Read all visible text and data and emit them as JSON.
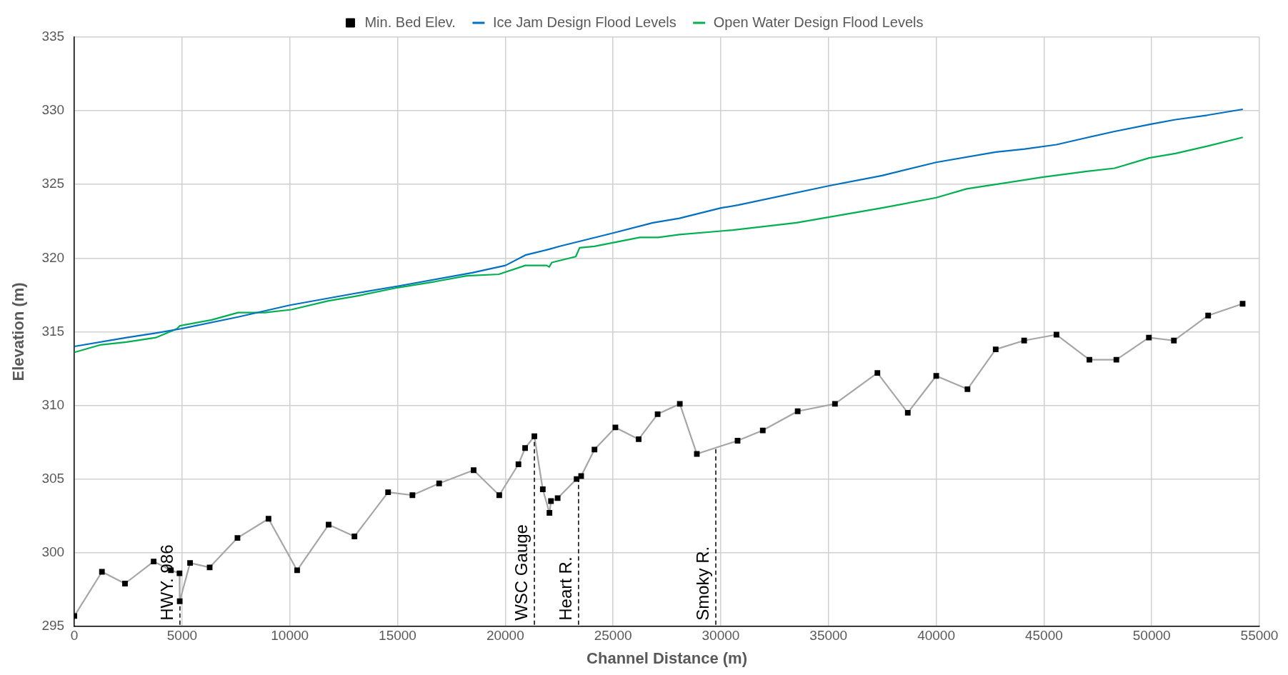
{
  "chart_data": {
    "type": "line",
    "xlabel": "Channel Distance (m)",
    "ylabel": "Elevation (m)",
    "xlim": [
      0,
      55000
    ],
    "xticks": [
      0,
      5000,
      10000,
      15000,
      20000,
      25000,
      30000,
      35000,
      40000,
      45000,
      50000,
      55000
    ],
    "ylim": [
      295,
      335
    ],
    "yticks": [
      295,
      300,
      305,
      310,
      315,
      320,
      325,
      330,
      335
    ],
    "grid": true,
    "legend": "top",
    "series": [
      {
        "name": "Min. Bed Elev.",
        "color": "#a6a6a6",
        "marker": "square",
        "x": [
          0,
          1280,
          2350,
          3680,
          4480,
          4880,
          4890,
          5370,
          6280,
          7570,
          9010,
          10340,
          11800,
          13000,
          14560,
          15690,
          16930,
          18530,
          19720,
          20610,
          20920,
          21350,
          21740,
          22050,
          22120,
          22430,
          23310,
          23520,
          24140,
          25110,
          26190,
          27070,
          28100,
          28890,
          30780,
          31950,
          33570,
          35300,
          37270,
          38680,
          40000,
          41450,
          42760,
          44080,
          45580,
          47110,
          48360,
          49870,
          51030,
          52620,
          54220
        ],
        "values": [
          295.7,
          298.7,
          297.9,
          299.4,
          298.8,
          298.6,
          296.7,
          299.3,
          299.0,
          301.0,
          302.3,
          298.8,
          301.9,
          301.1,
          304.1,
          303.9,
          304.7,
          305.6,
          303.9,
          306.0,
          307.1,
          307.9,
          304.3,
          302.7,
          303.5,
          303.7,
          305.0,
          305.2,
          307.0,
          308.5,
          307.7,
          309.4,
          310.1,
          306.7,
          307.6,
          308.3,
          309.6,
          310.1,
          312.2,
          309.5,
          312.0,
          311.1,
          313.8,
          314.4,
          314.8,
          313.1,
          313.1,
          314.6,
          314.4,
          316.1,
          316.9
        ]
      },
      {
        "name": "Ice Jam Design Flood Levels",
        "color": "#0070c0",
        "marker": "none",
        "x": [
          0,
          2420,
          3770,
          4950,
          7600,
          10000,
          13030,
          15030,
          18460,
          20010,
          20930,
          22040,
          22530,
          25000,
          26850,
          28080,
          30010,
          30800,
          35000,
          37480,
          40000,
          42760,
          44110,
          45580,
          47060,
          48280,
          50000,
          51100,
          52580,
          54230
        ],
        "values": [
          314.0,
          314.6,
          314.9,
          315.2,
          316.0,
          316.8,
          317.6,
          318.1,
          319.0,
          319.5,
          320.2,
          320.6,
          320.8,
          321.7,
          322.4,
          322.7,
          323.4,
          323.6,
          324.9,
          325.6,
          326.5,
          327.2,
          327.4,
          327.7,
          328.2,
          328.6,
          329.1,
          329.4,
          329.7,
          330.1
        ]
      },
      {
        "name": "Open Water Design Flood Levels",
        "color": "#00b050",
        "marker": "none",
        "x": [
          0,
          1190,
          2420,
          3780,
          4760,
          4890,
          6370,
          7600,
          8840,
          10070,
          11800,
          13030,
          15030,
          16730,
          18210,
          19700,
          20930,
          21920,
          22040,
          22160,
          23270,
          23450,
          24140,
          26240,
          27100,
          28080,
          30550,
          33510,
          37480,
          40000,
          41410,
          42760,
          44970,
          47060,
          48280,
          49880,
          51100,
          52580,
          54230
        ],
        "values": [
          313.6,
          314.1,
          314.3,
          314.6,
          315.2,
          315.4,
          315.8,
          316.3,
          316.3,
          316.5,
          317.1,
          317.4,
          318.0,
          318.4,
          318.8,
          318.9,
          319.5,
          319.5,
          319.4,
          319.7,
          320.1,
          320.7,
          320.8,
          321.4,
          321.4,
          321.6,
          321.9,
          322.4,
          323.4,
          324.1,
          324.7,
          325.0,
          325.5,
          325.9,
          326.1,
          326.8,
          327.1,
          327.6,
          328.2
        ]
      }
    ],
    "ref_lines": [
      {
        "axis": "x",
        "value": 4900,
        "label": "HWY. 986",
        "line_style": "dashed"
      },
      {
        "axis": "x",
        "value": 21350,
        "label": "WSC Gauge",
        "line_style": "dashed"
      },
      {
        "axis": "x",
        "value": 23400,
        "label": "Heart R.",
        "line_style": "dashed"
      },
      {
        "axis": "x",
        "value": 29770,
        "label": "Smoky R.",
        "line_style": "dashed"
      }
    ]
  }
}
